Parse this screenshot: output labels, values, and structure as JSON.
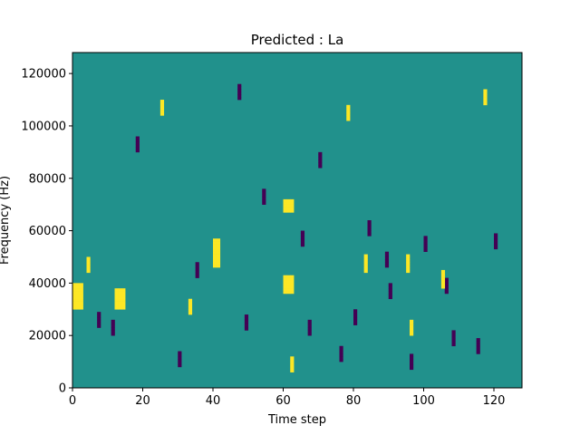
{
  "chart_data": {
    "type": "heatmap",
    "title": "Predicted : La",
    "xlabel": "Time step",
    "ylabel": "Frequency (Hz)",
    "xlim": [
      0,
      128
    ],
    "ylim": [
      0,
      128000
    ],
    "x_ticks": [
      0,
      20,
      40,
      60,
      80,
      100,
      120
    ],
    "y_ticks": [
      0,
      20000,
      40000,
      60000,
      80000,
      100000,
      120000
    ],
    "x_tick_labels": [
      "0",
      "20",
      "40",
      "60",
      "80",
      "100",
      "120"
    ],
    "y_tick_labels": [
      "0",
      "20000",
      "40000",
      "60000",
      "80000",
      "100000",
      "120000"
    ],
    "grid": false,
    "colormap": "viridis",
    "colors": {
      "background": "#21918c",
      "low": "#440154",
      "high": "#fde725"
    },
    "n_time_steps": 128,
    "n_frequency_bins": 128,
    "bin_hz": 1000,
    "baseline_value": 0,
    "high_cells": [
      [
        0,
        30
      ],
      [
        0,
        31
      ],
      [
        0,
        32
      ],
      [
        0,
        33
      ],
      [
        0,
        34
      ],
      [
        0,
        35
      ],
      [
        0,
        36
      ],
      [
        0,
        37
      ],
      [
        0,
        38
      ],
      [
        0,
        39
      ],
      [
        1,
        30
      ],
      [
        1,
        31
      ],
      [
        1,
        32
      ],
      [
        1,
        33
      ],
      [
        1,
        34
      ],
      [
        1,
        35
      ],
      [
        1,
        36
      ],
      [
        1,
        37
      ],
      [
        1,
        38
      ],
      [
        1,
        39
      ],
      [
        2,
        30
      ],
      [
        2,
        31
      ],
      [
        2,
        32
      ],
      [
        2,
        33
      ],
      [
        2,
        34
      ],
      [
        2,
        35
      ],
      [
        2,
        36
      ],
      [
        2,
        37
      ],
      [
        2,
        38
      ],
      [
        2,
        39
      ],
      [
        12,
        30
      ],
      [
        12,
        31
      ],
      [
        12,
        32
      ],
      [
        12,
        33
      ],
      [
        12,
        34
      ],
      [
        12,
        35
      ],
      [
        12,
        36
      ],
      [
        12,
        37
      ],
      [
        13,
        30
      ],
      [
        13,
        31
      ],
      [
        13,
        32
      ],
      [
        13,
        33
      ],
      [
        13,
        34
      ],
      [
        13,
        35
      ],
      [
        13,
        36
      ],
      [
        13,
        37
      ],
      [
        14,
        30
      ],
      [
        14,
        31
      ],
      [
        14,
        32
      ],
      [
        14,
        33
      ],
      [
        14,
        34
      ],
      [
        14,
        35
      ],
      [
        14,
        36
      ],
      [
        14,
        37
      ],
      [
        40,
        46
      ],
      [
        40,
        47
      ],
      [
        40,
        48
      ],
      [
        40,
        49
      ],
      [
        40,
        50
      ],
      [
        40,
        51
      ],
      [
        40,
        52
      ],
      [
        40,
        53
      ],
      [
        41,
        46
      ],
      [
        41,
        47
      ],
      [
        41,
        48
      ],
      [
        41,
        49
      ],
      [
        41,
        50
      ],
      [
        41,
        51
      ],
      [
        41,
        52
      ],
      [
        41,
        53
      ],
      [
        40,
        54
      ],
      [
        41,
        54
      ],
      [
        40,
        55
      ],
      [
        41,
        55
      ],
      [
        40,
        56
      ],
      [
        41,
        56
      ],
      [
        60,
        36
      ],
      [
        60,
        37
      ],
      [
        60,
        38
      ],
      [
        60,
        39
      ],
      [
        60,
        40
      ],
      [
        60,
        41
      ],
      [
        60,
        42
      ],
      [
        61,
        36
      ],
      [
        61,
        37
      ],
      [
        61,
        38
      ],
      [
        61,
        39
      ],
      [
        61,
        40
      ],
      [
        61,
        41
      ],
      [
        61,
        42
      ],
      [
        62,
        36
      ],
      [
        62,
        37
      ],
      [
        62,
        38
      ],
      [
        62,
        39
      ],
      [
        62,
        40
      ],
      [
        62,
        41
      ],
      [
        62,
        42
      ],
      [
        60,
        67
      ],
      [
        60,
        68
      ],
      [
        60,
        69
      ],
      [
        60,
        70
      ],
      [
        60,
        71
      ],
      [
        61,
        67
      ],
      [
        61,
        68
      ],
      [
        61,
        69
      ],
      [
        61,
        70
      ],
      [
        61,
        71
      ],
      [
        62,
        67
      ],
      [
        62,
        68
      ],
      [
        62,
        69
      ],
      [
        62,
        70
      ],
      [
        62,
        71
      ],
      [
        83,
        44
      ],
      [
        83,
        45
      ],
      [
        83,
        46
      ],
      [
        83,
        47
      ],
      [
        83,
        48
      ],
      [
        83,
        49
      ],
      [
        83,
        50
      ],
      [
        95,
        44
      ],
      [
        95,
        45
      ],
      [
        95,
        46
      ],
      [
        95,
        47
      ],
      [
        95,
        48
      ],
      [
        95,
        49
      ],
      [
        95,
        50
      ],
      [
        105,
        38
      ],
      [
        105,
        39
      ],
      [
        105,
        40
      ],
      [
        105,
        41
      ],
      [
        105,
        42
      ],
      [
        105,
        43
      ],
      [
        105,
        44
      ],
      [
        117,
        108
      ],
      [
        117,
        109
      ],
      [
        117,
        110
      ],
      [
        117,
        111
      ],
      [
        117,
        112
      ],
      [
        117,
        113
      ],
      [
        25,
        104
      ],
      [
        25,
        105
      ],
      [
        25,
        106
      ],
      [
        25,
        107
      ],
      [
        25,
        108
      ],
      [
        25,
        109
      ],
      [
        78,
        102
      ],
      [
        78,
        103
      ],
      [
        78,
        104
      ],
      [
        78,
        105
      ],
      [
        78,
        106
      ],
      [
        78,
        107
      ],
      [
        96,
        20
      ],
      [
        96,
        21
      ],
      [
        96,
        22
      ],
      [
        96,
        23
      ],
      [
        96,
        24
      ],
      [
        96,
        25
      ],
      [
        62,
        6
      ],
      [
        62,
        7
      ],
      [
        62,
        8
      ],
      [
        62,
        9
      ],
      [
        62,
        10
      ],
      [
        62,
        11
      ],
      [
        4,
        44
      ],
      [
        4,
        45
      ],
      [
        4,
        46
      ],
      [
        4,
        47
      ],
      [
        4,
        48
      ],
      [
        4,
        49
      ],
      [
        33,
        28
      ],
      [
        33,
        29
      ],
      [
        33,
        30
      ],
      [
        33,
        31
      ],
      [
        33,
        32
      ],
      [
        33,
        33
      ]
    ],
    "low_cells": [
      [
        7,
        23
      ],
      [
        7,
        24
      ],
      [
        7,
        25
      ],
      [
        7,
        26
      ],
      [
        7,
        27
      ],
      [
        7,
        28
      ],
      [
        11,
        20
      ],
      [
        11,
        21
      ],
      [
        11,
        22
      ],
      [
        11,
        23
      ],
      [
        11,
        24
      ],
      [
        11,
        25
      ],
      [
        30,
        8
      ],
      [
        30,
        9
      ],
      [
        30,
        10
      ],
      [
        30,
        11
      ],
      [
        30,
        12
      ],
      [
        30,
        13
      ],
      [
        49,
        22
      ],
      [
        49,
        23
      ],
      [
        49,
        24
      ],
      [
        49,
        25
      ],
      [
        49,
        26
      ],
      [
        49,
        27
      ],
      [
        65,
        54
      ],
      [
        65,
        55
      ],
      [
        65,
        56
      ],
      [
        65,
        57
      ],
      [
        65,
        58
      ],
      [
        65,
        59
      ],
      [
        67,
        20
      ],
      [
        67,
        21
      ],
      [
        67,
        22
      ],
      [
        67,
        23
      ],
      [
        67,
        24
      ],
      [
        67,
        25
      ],
      [
        76,
        10
      ],
      [
        76,
        11
      ],
      [
        76,
        12
      ],
      [
        76,
        13
      ],
      [
        76,
        14
      ],
      [
        76,
        15
      ],
      [
        89,
        46
      ],
      [
        89,
        47
      ],
      [
        89,
        48
      ],
      [
        89,
        49
      ],
      [
        89,
        50
      ],
      [
        89,
        51
      ],
      [
        96,
        7
      ],
      [
        96,
        8
      ],
      [
        96,
        9
      ],
      [
        96,
        10
      ],
      [
        96,
        11
      ],
      [
        96,
        12
      ],
      [
        100,
        52
      ],
      [
        100,
        53
      ],
      [
        100,
        54
      ],
      [
        100,
        55
      ],
      [
        100,
        56
      ],
      [
        100,
        57
      ],
      [
        106,
        36
      ],
      [
        106,
        37
      ],
      [
        106,
        38
      ],
      [
        106,
        39
      ],
      [
        106,
        40
      ],
      [
        106,
        41
      ],
      [
        115,
        13
      ],
      [
        115,
        14
      ],
      [
        115,
        15
      ],
      [
        115,
        16
      ],
      [
        115,
        17
      ],
      [
        115,
        18
      ],
      [
        120,
        53
      ],
      [
        120,
        54
      ],
      [
        120,
        55
      ],
      [
        120,
        56
      ],
      [
        120,
        57
      ],
      [
        120,
        58
      ],
      [
        90,
        34
      ],
      [
        90,
        35
      ],
      [
        90,
        36
      ],
      [
        90,
        37
      ],
      [
        90,
        38
      ],
      [
        90,
        39
      ],
      [
        108,
        16
      ],
      [
        108,
        17
      ],
      [
        108,
        18
      ],
      [
        108,
        19
      ],
      [
        108,
        20
      ],
      [
        108,
        21
      ],
      [
        70,
        84
      ],
      [
        70,
        85
      ],
      [
        70,
        86
      ],
      [
        70,
        87
      ],
      [
        70,
        88
      ],
      [
        70,
        89
      ],
      [
        47,
        110
      ],
      [
        47,
        111
      ],
      [
        47,
        112
      ],
      [
        47,
        113
      ],
      [
        47,
        114
      ],
      [
        47,
        115
      ],
      [
        18,
        90
      ],
      [
        18,
        91
      ],
      [
        18,
        92
      ],
      [
        18,
        93
      ],
      [
        18,
        94
      ],
      [
        18,
        95
      ],
      [
        35,
        42
      ],
      [
        35,
        43
      ],
      [
        35,
        44
      ],
      [
        35,
        45
      ],
      [
        35,
        46
      ],
      [
        35,
        47
      ],
      [
        54,
        70
      ],
      [
        54,
        71
      ],
      [
        54,
        72
      ],
      [
        54,
        73
      ],
      [
        54,
        74
      ],
      [
        54,
        75
      ],
      [
        80,
        24
      ],
      [
        80,
        25
      ],
      [
        80,
        26
      ],
      [
        80,
        27
      ],
      [
        80,
        28
      ],
      [
        80,
        29
      ],
      [
        84,
        58
      ],
      [
        84,
        59
      ],
      [
        84,
        60
      ],
      [
        84,
        61
      ],
      [
        84,
        62
      ],
      [
        84,
        63
      ]
    ]
  }
}
